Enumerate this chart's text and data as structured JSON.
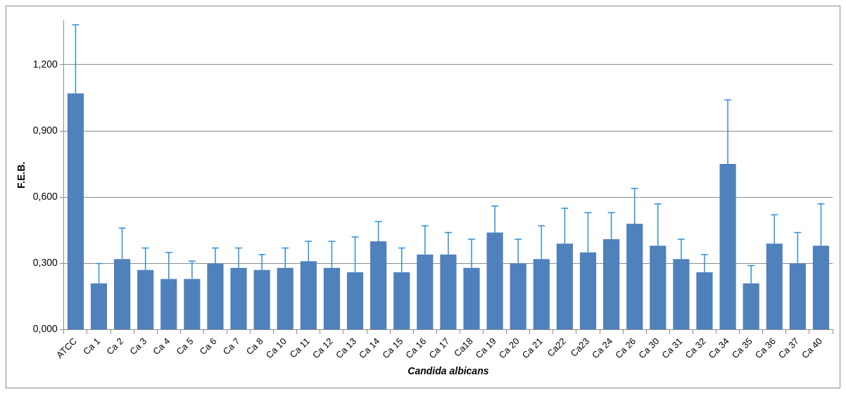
{
  "chart_data": {
    "type": "bar",
    "xlabel": "Candida albicans",
    "ylabel": "F.E.B.",
    "categories": [
      "ATCC",
      "Ca 1",
      "Ca 2",
      "Ca 3",
      "Ca 4",
      "Ca 5",
      "Ca 6",
      "Ca 7",
      "Ca 8",
      "Ca 10",
      "Ca 11",
      "Ca 12",
      "Ca 13",
      "Ca 14",
      "Ca 15",
      "Ca 16",
      "Ca 17",
      "Ca18",
      "Ca 19",
      "Ca 20",
      "Ca 21",
      "Ca22",
      "Ca23",
      "Ca 24",
      "Ca 26",
      "Ca 30",
      "Ca 31",
      "Ca 32",
      "Ca 34",
      "Ca 35",
      "Ca 36",
      "Ca 37",
      "Ca 40"
    ],
    "values": [
      1.07,
      0.21,
      0.32,
      0.27,
      0.23,
      0.23,
      0.3,
      0.28,
      0.27,
      0.28,
      0.31,
      0.28,
      0.26,
      0.4,
      0.26,
      0.34,
      0.34,
      0.28,
      0.44,
      0.3,
      0.32,
      0.39,
      0.35,
      0.41,
      0.48,
      0.38,
      0.32,
      0.26,
      0.75,
      0.21,
      0.39,
      0.3,
      0.38
    ],
    "errors": [
      [
        1.07,
        1.38
      ],
      [
        0.21,
        0.3
      ],
      [
        0.32,
        0.46
      ],
      [
        0.27,
        0.37
      ],
      [
        0.23,
        0.35
      ],
      [
        0.23,
        0.31
      ],
      [
        0.3,
        0.37
      ],
      [
        0.28,
        0.37
      ],
      [
        0.27,
        0.34
      ],
      [
        0.28,
        0.37
      ],
      [
        0.31,
        0.4
      ],
      [
        0.28,
        0.4
      ],
      [
        0.26,
        0.42
      ],
      [
        0.4,
        0.49
      ],
      [
        0.26,
        0.37
      ],
      [
        0.34,
        0.47
      ],
      [
        0.34,
        0.44
      ],
      [
        0.28,
        0.41
      ],
      [
        0.44,
        0.56
      ],
      [
        0.3,
        0.41
      ],
      [
        0.32,
        0.47
      ],
      [
        0.39,
        0.55
      ],
      [
        0.35,
        0.53
      ],
      [
        0.41,
        0.53
      ],
      [
        0.48,
        0.64
      ],
      [
        0.38,
        0.57
      ],
      [
        0.32,
        0.41
      ],
      [
        0.26,
        0.34
      ],
      [
        0.75,
        1.04
      ],
      [
        0.21,
        0.29
      ],
      [
        0.39,
        0.52
      ],
      [
        0.3,
        0.44
      ],
      [
        0.38,
        0.57
      ]
    ],
    "color": "#4f81bd",
    "ylim": [
      0,
      1.4
    ],
    "yticks": [
      {
        "value": 0,
        "label": "0,000"
      },
      {
        "value": 0.3,
        "label": "0,300"
      },
      {
        "value": 0.6,
        "label": "0,600"
      },
      {
        "value": 0.9,
        "label": "0,900"
      },
      {
        "value": 1.2,
        "label": "1,200"
      }
    ],
    "grid": "y"
  }
}
